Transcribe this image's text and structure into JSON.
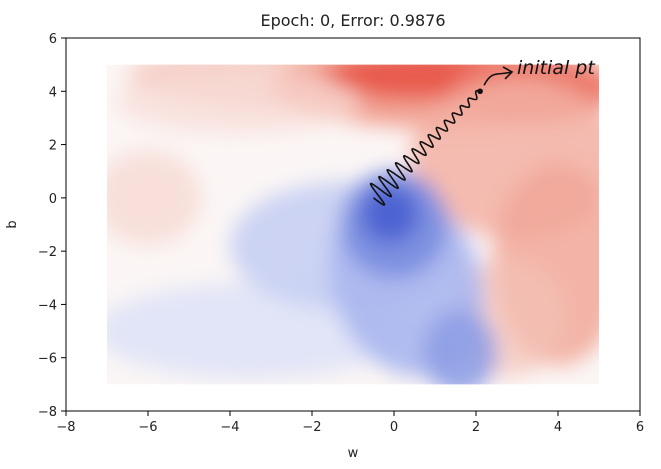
{
  "chart_data": {
    "type": "contour",
    "title": "Epoch:  0, Error: 0.9876",
    "xlabel": "w",
    "ylabel": "b",
    "xlim": [
      -8,
      6
    ],
    "ylim": [
      -8,
      6
    ],
    "xticks": [
      -8,
      -6,
      -4,
      -2,
      0,
      2,
      4,
      6
    ],
    "yticks": [
      -8,
      -6,
      -4,
      -2,
      0,
      2,
      4,
      6
    ],
    "xtick_labels": [
      "−8",
      "−6",
      "−4",
      "−2",
      "0",
      "2",
      "4",
      "6"
    ],
    "ytick_labels": [
      "−8",
      "−6",
      "−4",
      "−2",
      "0",
      "2",
      "4",
      "6"
    ],
    "grid": false,
    "surface": {
      "w_range": [
        -7,
        5
      ],
      "b_range": [
        -7,
        5
      ],
      "colormap": "coolwarm",
      "low_color": "#3b4cc0",
      "mid_color": "#f5f5f5",
      "high_color": "#e8473f"
    },
    "trajectory": {
      "start": {
        "w": 2.1,
        "b": 4.0
      },
      "end": {
        "w": -0.5,
        "b": 0.0
      }
    },
    "annotation": {
      "text": "initial pt",
      "w": 3.0,
      "b": 4.8
    }
  }
}
